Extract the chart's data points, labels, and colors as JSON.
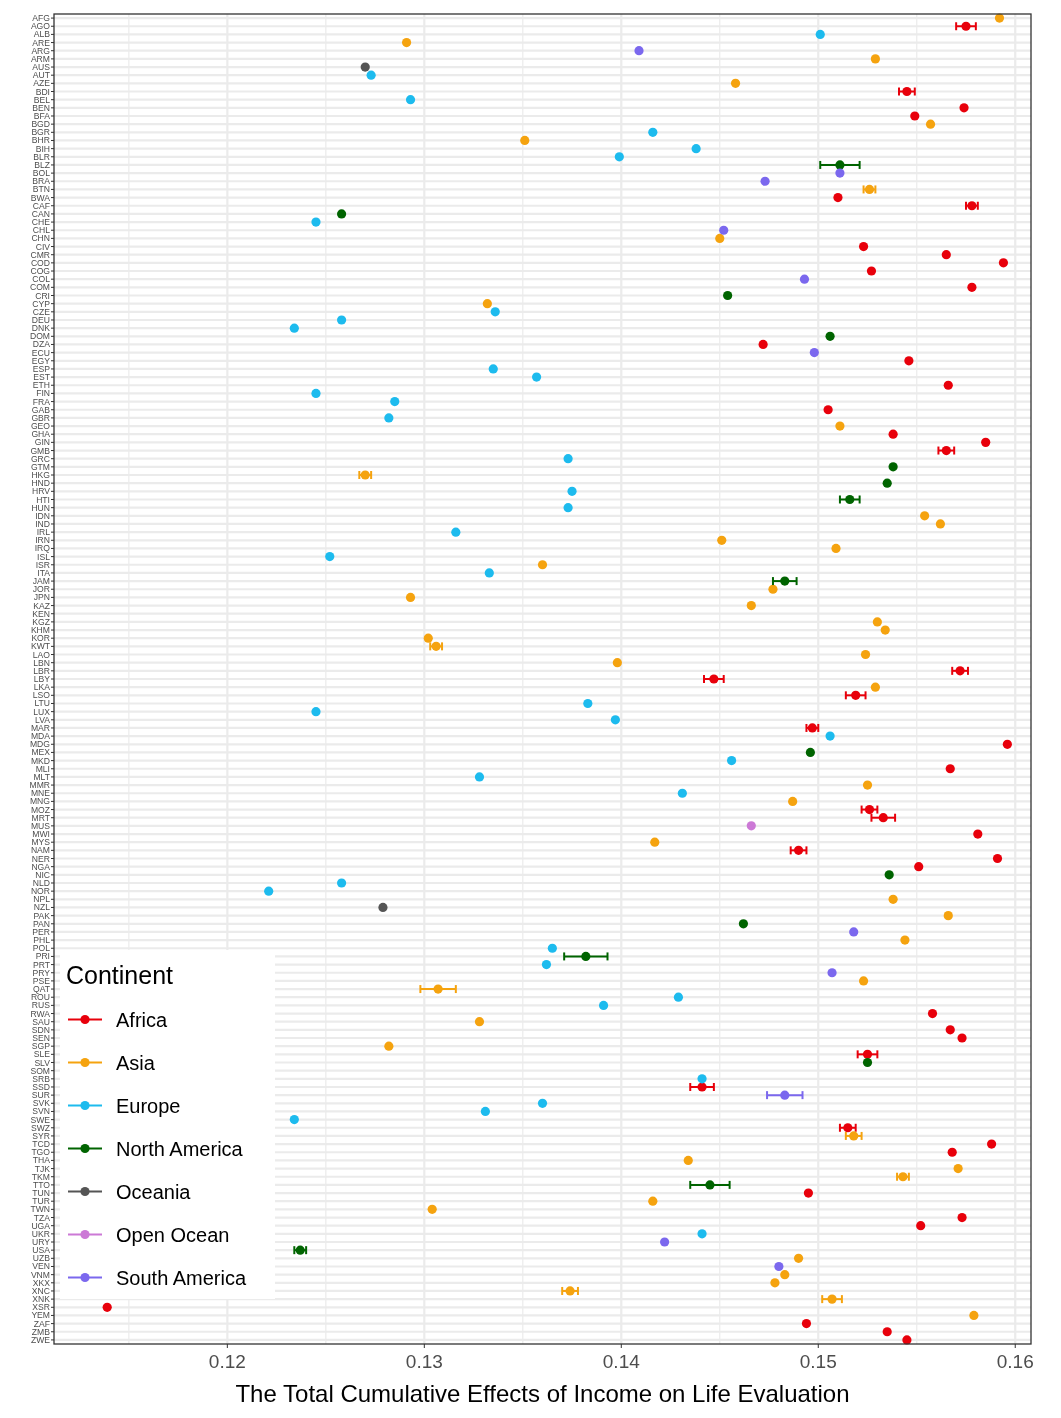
{
  "chart_data": {
    "type": "scatter",
    "orientation": "horizontal",
    "xlabel": "The Total Cumulative Effects of Income on Life Evaluation",
    "legend_title": "Continent",
    "legend": "bottom left",
    "grid": true,
    "marker": "circle",
    "xlim": [
      0.1112,
      0.1608
    ],
    "xticks": [
      {
        "value": 0.115,
        "label": null
      },
      0.12,
      {
        "value": 0.125,
        "label": null
      },
      0.13,
      {
        "value": 0.135,
        "label": null
      },
      0.14,
      {
        "value": 0.145,
        "label": null
      },
      0.15,
      {
        "value": 0.155,
        "label": null
      },
      0.16
    ],
    "categories": [
      "AFG",
      "AGO",
      "ALB",
      "ARE",
      "ARG",
      "ARM",
      "AUS",
      "AUT",
      "AZE",
      "BDI",
      "BEL",
      "BEN",
      "BFA",
      "BGD",
      "BGR",
      "BHR",
      "BIH",
      "BLR",
      "BLZ",
      "BOL",
      "BRA",
      "BTN",
      "BWA",
      "CAF",
      "CAN",
      "CHE",
      "CHL",
      "CHN",
      "CIV",
      "CMR",
      "COD",
      "COG",
      "COL",
      "COM",
      "CRI",
      "CYP",
      "CZE",
      "DEU",
      "DNK",
      "DOM",
      "DZA",
      "ECU",
      "EGY",
      "ESP",
      "EST",
      "ETH",
      "FIN",
      "FRA",
      "GAB",
      "GBR",
      "GEO",
      "GHA",
      "GIN",
      "GMB",
      "GRC",
      "GTM",
      "HKG",
      "HND",
      "HRV",
      "HTI",
      "HUN",
      "IDN",
      "IND",
      "IRL",
      "IRN",
      "IRQ",
      "ISL",
      "ISR",
      "ITA",
      "JAM",
      "JOR",
      "JPN",
      "KAZ",
      "KEN",
      "KGZ",
      "KHM",
      "KOR",
      "KWT",
      "LAO",
      "LBN",
      "LBR",
      "LBY",
      "LKA",
      "LSO",
      "LTU",
      "LUX",
      "LVA",
      "MAR",
      "MDA",
      "MDG",
      "MEX",
      "MKD",
      "MLI",
      "MLT",
      "MMR",
      "MNE",
      "MNG",
      "MOZ",
      "MRT",
      "MUS",
      "MWI",
      "MYS",
      "NAM",
      "NER",
      "NGA",
      "NIC",
      "NLD",
      "NOR",
      "NPL",
      "NZL",
      "PAK",
      "PAN",
      "PER",
      "PHL",
      "POL",
      "PRI",
      "PRT",
      "PRY",
      "PSE",
      "QAT",
      "ROU",
      "RUS",
      "RWA",
      "SAU",
      "SDN",
      "SEN",
      "SGP",
      "SLE",
      "SLV",
      "SOM",
      "SRB",
      "SSD",
      "SUR",
      "SVK",
      "SVN",
      "SWE",
      "SWZ",
      "SYR",
      "TCD",
      "TGO",
      "THA",
      "TJK",
      "TKM",
      "TTO",
      "TUN",
      "TUR",
      "TWN",
      "TZA",
      "UGA",
      "UKR",
      "URY",
      "USA",
      "UZB",
      "VEN",
      "VNM",
      "XKX",
      "XNC",
      "XNK",
      "XSR",
      "YEM",
      "ZAF",
      "ZMB",
      "ZWE"
    ],
    "series": [
      {
        "name": "Africa",
        "color": "#e8000b",
        "values": [
          null,
          0.1575,
          null,
          null,
          null,
          null,
          null,
          null,
          null,
          0.1545,
          null,
          0.1574,
          0.1549,
          null,
          null,
          null,
          null,
          null,
          null,
          null,
          null,
          null,
          0.151,
          0.1578,
          null,
          null,
          null,
          null,
          0.1523,
          0.1565,
          0.1594,
          0.1527,
          null,
          0.1578,
          null,
          null,
          null,
          null,
          null,
          null,
          0.1472,
          null,
          0.1546,
          null,
          null,
          0.1566,
          null,
          null,
          0.1505,
          null,
          null,
          0.1538,
          0.1585,
          0.1565,
          null,
          null,
          null,
          null,
          null,
          null,
          null,
          null,
          null,
          null,
          null,
          null,
          null,
          null,
          null,
          null,
          null,
          null,
          null,
          null,
          null,
          null,
          null,
          null,
          null,
          null,
          0.1572,
          0.1447,
          null,
          0.1519,
          null,
          null,
          null,
          0.1497,
          null,
          0.1596,
          null,
          null,
          0.1567,
          null,
          null,
          null,
          null,
          0.1526,
          0.1533,
          null,
          0.1581,
          null,
          0.149,
          0.1591,
          0.1551,
          null,
          null,
          null,
          null,
          null,
          null,
          null,
          null,
          null,
          null,
          null,
          null,
          null,
          null,
          null,
          null,
          null,
          0.1558,
          null,
          0.1567,
          0.1573,
          null,
          0.1525,
          null,
          null,
          null,
          0.1441,
          null,
          null,
          null,
          null,
          0.1515,
          null,
          0.1588,
          0.1568,
          null,
          null,
          null,
          null,
          0.1495,
          null,
          null,
          0.1573,
          0.1552,
          null,
          null,
          null,
          null,
          null,
          null,
          null,
          null,
          null,
          0.1139,
          null,
          0.1494,
          0.1535,
          0.1545
        ],
        "errors": [
          null,
          0.0005,
          null,
          null,
          null,
          null,
          null,
          null,
          null,
          0.0004,
          null,
          null,
          null,
          null,
          null,
          null,
          null,
          null,
          null,
          null,
          null,
          null,
          null,
          0.0003,
          null,
          null,
          null,
          null,
          null,
          null,
          null,
          null,
          null,
          null,
          null,
          null,
          null,
          null,
          null,
          null,
          null,
          null,
          null,
          null,
          null,
          null,
          null,
          null,
          null,
          null,
          null,
          null,
          null,
          0.0004,
          null,
          null,
          null,
          null,
          null,
          null,
          null,
          null,
          null,
          null,
          null,
          null,
          null,
          null,
          null,
          null,
          null,
          null,
          null,
          null,
          null,
          null,
          null,
          null,
          null,
          null,
          0.0004,
          0.0005,
          null,
          0.0005,
          null,
          null,
          null,
          0.0003,
          null,
          null,
          null,
          null,
          null,
          null,
          null,
          null,
          null,
          0.0004,
          0.0006,
          null,
          null,
          null,
          0.0004,
          null,
          null,
          null,
          null,
          null,
          null,
          null,
          null,
          null,
          null,
          null,
          null,
          null,
          null,
          null,
          null,
          null,
          null,
          null,
          null,
          null,
          null,
          null,
          null,
          0.0005,
          null,
          null,
          null,
          0.0006,
          null,
          null,
          null,
          null,
          0.0004,
          null,
          null,
          null,
          null,
          null,
          null,
          null,
          null,
          null,
          null,
          null,
          null,
          null,
          null,
          null,
          null,
          null,
          null,
          null,
          null,
          null,
          null,
          null,
          null,
          null,
          null
        ]
      },
      {
        "name": "Asia",
        "color": "#f5a30f",
        "values": [
          0.1592,
          null,
          null,
          0.1291,
          null,
          0.1529,
          null,
          null,
          0.1458,
          null,
          null,
          null,
          null,
          0.1557,
          null,
          0.1351,
          null,
          null,
          null,
          null,
          null,
          0.1526,
          null,
          null,
          null,
          null,
          null,
          0.145,
          null,
          null,
          null,
          null,
          null,
          null,
          null,
          0.1332,
          null,
          null,
          null,
          null,
          null,
          null,
          null,
          null,
          null,
          null,
          null,
          null,
          null,
          null,
          0.1511,
          null,
          null,
          null,
          null,
          null,
          0.127,
          null,
          null,
          null,
          null,
          0.1554,
          0.1562,
          null,
          0.1451,
          0.1509,
          null,
          0.136,
          null,
          null,
          0.1477,
          0.1293,
          0.1466,
          null,
          0.153,
          0.1534,
          0.1302,
          0.1306,
          0.1524,
          0.1398,
          null,
          null,
          0.1529,
          null,
          null,
          null,
          null,
          null,
          null,
          null,
          null,
          null,
          null,
          null,
          0.1525,
          null,
          0.1487,
          null,
          null,
          null,
          null,
          0.1417,
          null,
          null,
          null,
          null,
          null,
          null,
          0.1538,
          null,
          0.1566,
          null,
          null,
          0.1544,
          null,
          null,
          null,
          null,
          0.1523,
          0.1307,
          null,
          null,
          null,
          0.1328,
          null,
          null,
          0.1282,
          null,
          null,
          null,
          null,
          null,
          null,
          null,
          null,
          null,
          null,
          0.1518,
          null,
          null,
          0.1434,
          0.1571,
          0.1543,
          null,
          null,
          0.1416,
          0.1304,
          null,
          null,
          null,
          null,
          null,
          0.149,
          null,
          0.1483,
          0.1478,
          0.1374,
          0.1507,
          null,
          0.1579,
          null,
          null,
          null
        ],
        "errors": [
          null,
          null,
          null,
          null,
          null,
          null,
          null,
          null,
          null,
          null,
          null,
          null,
          null,
          null,
          null,
          null,
          null,
          null,
          null,
          null,
          null,
          0.0003,
          null,
          null,
          null,
          null,
          null,
          null,
          null,
          null,
          null,
          null,
          null,
          null,
          null,
          null,
          null,
          null,
          null,
          null,
          null,
          null,
          null,
          null,
          null,
          null,
          null,
          null,
          null,
          null,
          null,
          null,
          null,
          null,
          null,
          null,
          0.0003,
          null,
          null,
          null,
          null,
          null,
          null,
          null,
          null,
          null,
          null,
          null,
          null,
          null,
          null,
          null,
          null,
          null,
          null,
          null,
          null,
          0.0003,
          null,
          null,
          null,
          null,
          null,
          null,
          null,
          null,
          null,
          null,
          null,
          null,
          null,
          null,
          null,
          null,
          null,
          null,
          null,
          null,
          null,
          null,
          null,
          null,
          null,
          null,
          null,
          null,
          null,
          null,
          null,
          null,
          null,
          null,
          null,
          null,
          null,
          null,
          null,
          null,
          null,
          0.0009,
          null,
          null,
          null,
          null,
          null,
          null,
          null,
          null,
          null,
          null,
          null,
          null,
          null,
          null,
          null,
          null,
          null,
          0.0004,
          null,
          null,
          null,
          null,
          0.0003,
          null,
          null,
          null,
          null,
          null,
          null,
          null,
          null,
          null,
          null,
          null,
          null,
          null,
          0.0004,
          0.0005,
          null,
          null,
          null,
          null,
          null
        ]
      },
      {
        "name": "Europe",
        "color": "#1dbbee",
        "values": [
          null,
          null,
          0.1501,
          null,
          null,
          null,
          null,
          0.1273,
          null,
          null,
          0.1293,
          null,
          null,
          null,
          0.1416,
          null,
          0.1438,
          0.1399,
          null,
          null,
          null,
          null,
          null,
          null,
          null,
          0.1245,
          null,
          null,
          null,
          null,
          null,
          null,
          null,
          null,
          null,
          null,
          0.1336,
          0.1258,
          0.1234,
          null,
          null,
          null,
          null,
          0.1335,
          0.1357,
          null,
          0.1245,
          0.1285,
          null,
          0.1282,
          null,
          null,
          null,
          null,
          0.1373,
          null,
          null,
          null,
          0.1375,
          null,
          0.1373,
          null,
          null,
          0.1316,
          null,
          null,
          0.1252,
          null,
          0.1333,
          null,
          null,
          null,
          null,
          null,
          null,
          null,
          null,
          null,
          null,
          null,
          null,
          null,
          null,
          null,
          0.1383,
          0.1245,
          0.1397,
          null,
          0.1506,
          null,
          null,
          0.1456,
          null,
          0.1328,
          null,
          0.1431,
          null,
          null,
          null,
          null,
          null,
          null,
          null,
          null,
          null,
          null,
          0.1258,
          0.1221,
          null,
          null,
          null,
          null,
          null,
          null,
          0.1365,
          null,
          0.1362,
          null,
          null,
          null,
          0.1429,
          0.1391,
          null,
          null,
          null,
          null,
          null,
          null,
          null,
          null,
          0.1441,
          null,
          null,
          0.136,
          0.1331,
          0.1234,
          null,
          null,
          null,
          null,
          null,
          null,
          null,
          null,
          null,
          null,
          null,
          null,
          null,
          0.1441,
          null,
          null,
          null,
          null,
          null,
          null,
          null,
          null,
          null,
          null,
          null,
          null,
          null
        ]
      },
      {
        "name": "North America",
        "color": "#006400",
        "values": [
          null,
          null,
          null,
          null,
          null,
          null,
          null,
          null,
          null,
          null,
          null,
          null,
          null,
          null,
          null,
          null,
          null,
          null,
          0.1511,
          null,
          null,
          null,
          null,
          null,
          0.1258,
          null,
          null,
          null,
          null,
          null,
          null,
          null,
          null,
          null,
          0.1454,
          null,
          null,
          null,
          null,
          0.1506,
          null,
          null,
          null,
          null,
          null,
          null,
          null,
          null,
          null,
          null,
          null,
          null,
          null,
          null,
          null,
          0.1538,
          null,
          0.1535,
          null,
          0.1516,
          null,
          null,
          null,
          null,
          null,
          null,
          null,
          null,
          null,
          0.1483,
          null,
          null,
          null,
          null,
          null,
          null,
          null,
          null,
          null,
          null,
          null,
          null,
          null,
          null,
          null,
          null,
          null,
          null,
          null,
          null,
          0.1496,
          null,
          null,
          null,
          null,
          null,
          null,
          null,
          null,
          null,
          null,
          null,
          null,
          null,
          null,
          0.1536,
          null,
          null,
          null,
          null,
          null,
          0.1462,
          null,
          null,
          null,
          0.1382,
          null,
          null,
          null,
          null,
          null,
          null,
          null,
          null,
          null,
          null,
          null,
          null,
          0.1525,
          null,
          null,
          null,
          null,
          null,
          null,
          null,
          null,
          null,
          null,
          null,
          null,
          null,
          null,
          0.1445,
          null,
          null,
          null,
          null,
          null,
          null,
          null,
          0.1237,
          null,
          null,
          null,
          null,
          null,
          null,
          null,
          null,
          null,
          null,
          null
        ],
        "errors": [
          null,
          null,
          null,
          null,
          null,
          null,
          null,
          null,
          null,
          null,
          null,
          null,
          null,
          null,
          null,
          null,
          null,
          null,
          0.001,
          null,
          null,
          null,
          null,
          null,
          null,
          null,
          null,
          null,
          null,
          null,
          null,
          null,
          null,
          null,
          null,
          null,
          null,
          null,
          null,
          null,
          null,
          null,
          null,
          null,
          null,
          null,
          null,
          null,
          null,
          null,
          null,
          null,
          null,
          null,
          null,
          null,
          null,
          null,
          null,
          0.0005,
          null,
          null,
          null,
          null,
          null,
          null,
          null,
          null,
          null,
          0.0006,
          null,
          null,
          null,
          null,
          null,
          null,
          null,
          null,
          null,
          null,
          null,
          null,
          null,
          null,
          null,
          null,
          null,
          null,
          null,
          null,
          null,
          null,
          null,
          null,
          null,
          null,
          null,
          null,
          null,
          null,
          null,
          null,
          null,
          null,
          null,
          null,
          null,
          null,
          null,
          null,
          null,
          null,
          null,
          null,
          null,
          0.0011,
          null,
          null,
          null,
          null,
          null,
          null,
          null,
          null,
          null,
          null,
          null,
          null,
          null,
          null,
          null,
          null,
          null,
          null,
          null,
          null,
          null,
          null,
          null,
          null,
          null,
          null,
          null,
          0.001,
          null,
          null,
          null,
          null,
          null,
          null,
          null,
          0.0003,
          null,
          null,
          null,
          null,
          null,
          null,
          null,
          null,
          null,
          null,
          null
        ]
      },
      {
        "name": "Oceania",
        "color": "#555555",
        "values": [
          null,
          null,
          null,
          null,
          null,
          null,
          0.127,
          null,
          null,
          null,
          null,
          null,
          null,
          null,
          null,
          null,
          null,
          null,
          null,
          null,
          null,
          null,
          null,
          null,
          null,
          null,
          null,
          null,
          null,
          null,
          null,
          null,
          null,
          null,
          null,
          null,
          null,
          null,
          null,
          null,
          null,
          null,
          null,
          null,
          null,
          null,
          null,
          null,
          null,
          null,
          null,
          null,
          null,
          null,
          null,
          null,
          null,
          null,
          null,
          null,
          null,
          null,
          null,
          null,
          null,
          null,
          null,
          null,
          null,
          null,
          null,
          null,
          null,
          null,
          null,
          null,
          null,
          null,
          null,
          null,
          null,
          null,
          null,
          null,
          null,
          null,
          null,
          null,
          null,
          null,
          null,
          null,
          null,
          null,
          null,
          null,
          null,
          null,
          null,
          null,
          null,
          null,
          null,
          null,
          null,
          null,
          null,
          null,
          null,
          0.1279,
          null,
          null,
          null,
          null,
          null,
          null,
          null,
          null,
          null,
          null,
          null,
          null,
          null,
          null,
          null,
          null,
          null,
          null,
          null,
          null,
          null,
          null,
          null,
          null,
          null,
          null,
          null,
          null,
          null,
          null,
          null,
          null,
          null,
          null,
          null,
          null,
          null,
          null,
          null,
          null,
          null,
          null,
          null,
          null,
          null,
          null,
          null,
          null,
          null,
          null,
          null,
          null,
          null
        ]
      },
      {
        "name": "Open Ocean",
        "color": "#cc79d6",
        "values": [
          null,
          null,
          null,
          null,
          null,
          null,
          null,
          null,
          null,
          null,
          null,
          null,
          null,
          null,
          null,
          null,
          null,
          null,
          null,
          null,
          null,
          null,
          null,
          null,
          null,
          null,
          null,
          null,
          null,
          null,
          null,
          null,
          null,
          null,
          null,
          null,
          null,
          null,
          null,
          null,
          null,
          null,
          null,
          null,
          null,
          null,
          null,
          null,
          null,
          null,
          null,
          null,
          null,
          null,
          null,
          null,
          null,
          null,
          null,
          null,
          null,
          null,
          null,
          null,
          null,
          null,
          null,
          null,
          null,
          null,
          null,
          null,
          null,
          null,
          null,
          null,
          null,
          null,
          null,
          null,
          null,
          null,
          null,
          null,
          null,
          null,
          null,
          null,
          null,
          null,
          null,
          null,
          null,
          null,
          null,
          null,
          null,
          null,
          null,
          0.1466,
          null,
          null,
          null,
          null,
          null,
          null,
          null,
          null,
          null,
          null,
          null,
          null,
          null,
          null,
          null,
          null,
          null,
          null,
          null,
          null,
          null,
          null,
          null,
          null,
          null,
          null,
          null,
          null,
          null,
          null,
          null,
          null,
          null,
          null,
          null,
          null,
          null,
          null,
          null,
          null,
          null,
          null,
          null,
          null,
          null,
          null,
          null,
          null,
          null,
          null,
          null,
          null,
          null,
          null,
          null,
          null,
          null,
          null,
          null,
          null,
          null,
          null,
          null
        ]
      },
      {
        "name": "South America",
        "color": "#7b68ee",
        "values": [
          null,
          null,
          null,
          null,
          0.1409,
          null,
          null,
          null,
          null,
          null,
          null,
          null,
          null,
          null,
          null,
          null,
          null,
          null,
          null,
          0.1511,
          0.1473,
          null,
          null,
          null,
          null,
          null,
          0.1452,
          null,
          null,
          null,
          null,
          null,
          0.1493,
          null,
          null,
          null,
          null,
          null,
          null,
          null,
          null,
          0.1498,
          null,
          null,
          null,
          null,
          null,
          null,
          null,
          null,
          null,
          null,
          null,
          null,
          null,
          null,
          null,
          null,
          null,
          null,
          null,
          null,
          null,
          null,
          null,
          null,
          null,
          null,
          null,
          null,
          null,
          null,
          null,
          null,
          null,
          null,
          null,
          null,
          null,
          null,
          null,
          null,
          null,
          null,
          null,
          null,
          null,
          null,
          null,
          null,
          null,
          null,
          null,
          null,
          null,
          null,
          null,
          null,
          null,
          null,
          null,
          null,
          null,
          null,
          null,
          null,
          null,
          null,
          null,
          null,
          null,
          null,
          0.1518,
          null,
          null,
          null,
          null,
          0.1507,
          null,
          null,
          null,
          null,
          null,
          null,
          null,
          null,
          null,
          null,
          null,
          null,
          null,
          null,
          0.1483,
          null,
          null,
          null,
          null,
          null,
          null,
          null,
          null,
          null,
          null,
          null,
          null,
          null,
          null,
          null,
          null,
          null,
          0.1422,
          null,
          null,
          0.148,
          null,
          null,
          null,
          null,
          null,
          null,
          null,
          null,
          null
        ],
        "errors": [
          null,
          null,
          null,
          null,
          null,
          null,
          null,
          null,
          null,
          null,
          null,
          null,
          null,
          null,
          null,
          null,
          null,
          null,
          null,
          null,
          null,
          null,
          null,
          null,
          null,
          null,
          null,
          null,
          null,
          null,
          null,
          null,
          null,
          null,
          null,
          null,
          null,
          null,
          null,
          null,
          null,
          null,
          null,
          null,
          null,
          null,
          null,
          null,
          null,
          null,
          null,
          null,
          null,
          null,
          null,
          null,
          null,
          null,
          null,
          null,
          null,
          null,
          null,
          null,
          null,
          null,
          null,
          null,
          null,
          null,
          null,
          null,
          null,
          null,
          null,
          null,
          null,
          null,
          null,
          null,
          null,
          null,
          null,
          null,
          null,
          null,
          null,
          null,
          null,
          null,
          null,
          null,
          null,
          null,
          null,
          null,
          null,
          null,
          null,
          null,
          null,
          null,
          null,
          null,
          null,
          null,
          null,
          null,
          null,
          null,
          null,
          null,
          null,
          null,
          null,
          null,
          null,
          null,
          null,
          null,
          null,
          null,
          null,
          null,
          null,
          null,
          null,
          null,
          null,
          null,
          null,
          null,
          0.0009,
          null,
          null,
          null,
          null,
          null,
          null,
          null,
          null,
          null,
          null,
          null,
          null,
          null,
          null,
          null,
          null,
          null,
          null,
          null,
          null,
          null,
          null,
          null,
          null,
          null,
          null,
          null,
          null,
          null,
          null
        ]
      }
    ]
  }
}
